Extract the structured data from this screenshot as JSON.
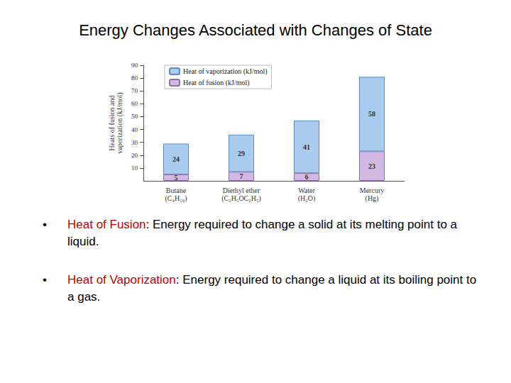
{
  "slide": {
    "title": "Energy Changes Associated with Changes of State",
    "bullets": [
      {
        "term": "Heat of Fusion",
        "text": ":  Energy required to change a solid at its melting point to a liquid."
      },
      {
        "term": "Heat of Vaporization",
        "text": ":  Energy required to change a liquid at its boiling point to a gas."
      }
    ]
  },
  "chart_data": {
    "type": "bar",
    "stacked": true,
    "data_labels": true,
    "grid": false,
    "legend": "upper left",
    "ylabel": "Heats of fusion and\nvaporization (kJ/mol)",
    "categories": [
      "Butane\n(C₄H₁₀)",
      "Diethyl ether\n(C₂H₅OC₂H₅)",
      "Water\n(H₂O)",
      "Mercury\n(Hg)"
    ],
    "series": [
      {
        "name": "Heat of fusion (kJ/mol)",
        "color": "#d2b9e2",
        "values": [
          5,
          7,
          6,
          23
        ]
      },
      {
        "name": "Heat of vaporization (kJ/mol)",
        "color": "#a9cbee",
        "values": [
          24,
          29,
          41,
          58
        ]
      }
    ],
    "ylim": [
      0,
      90
    ],
    "yticks": [
      10,
      20,
      30,
      40,
      50,
      60,
      70,
      80,
      90
    ]
  }
}
